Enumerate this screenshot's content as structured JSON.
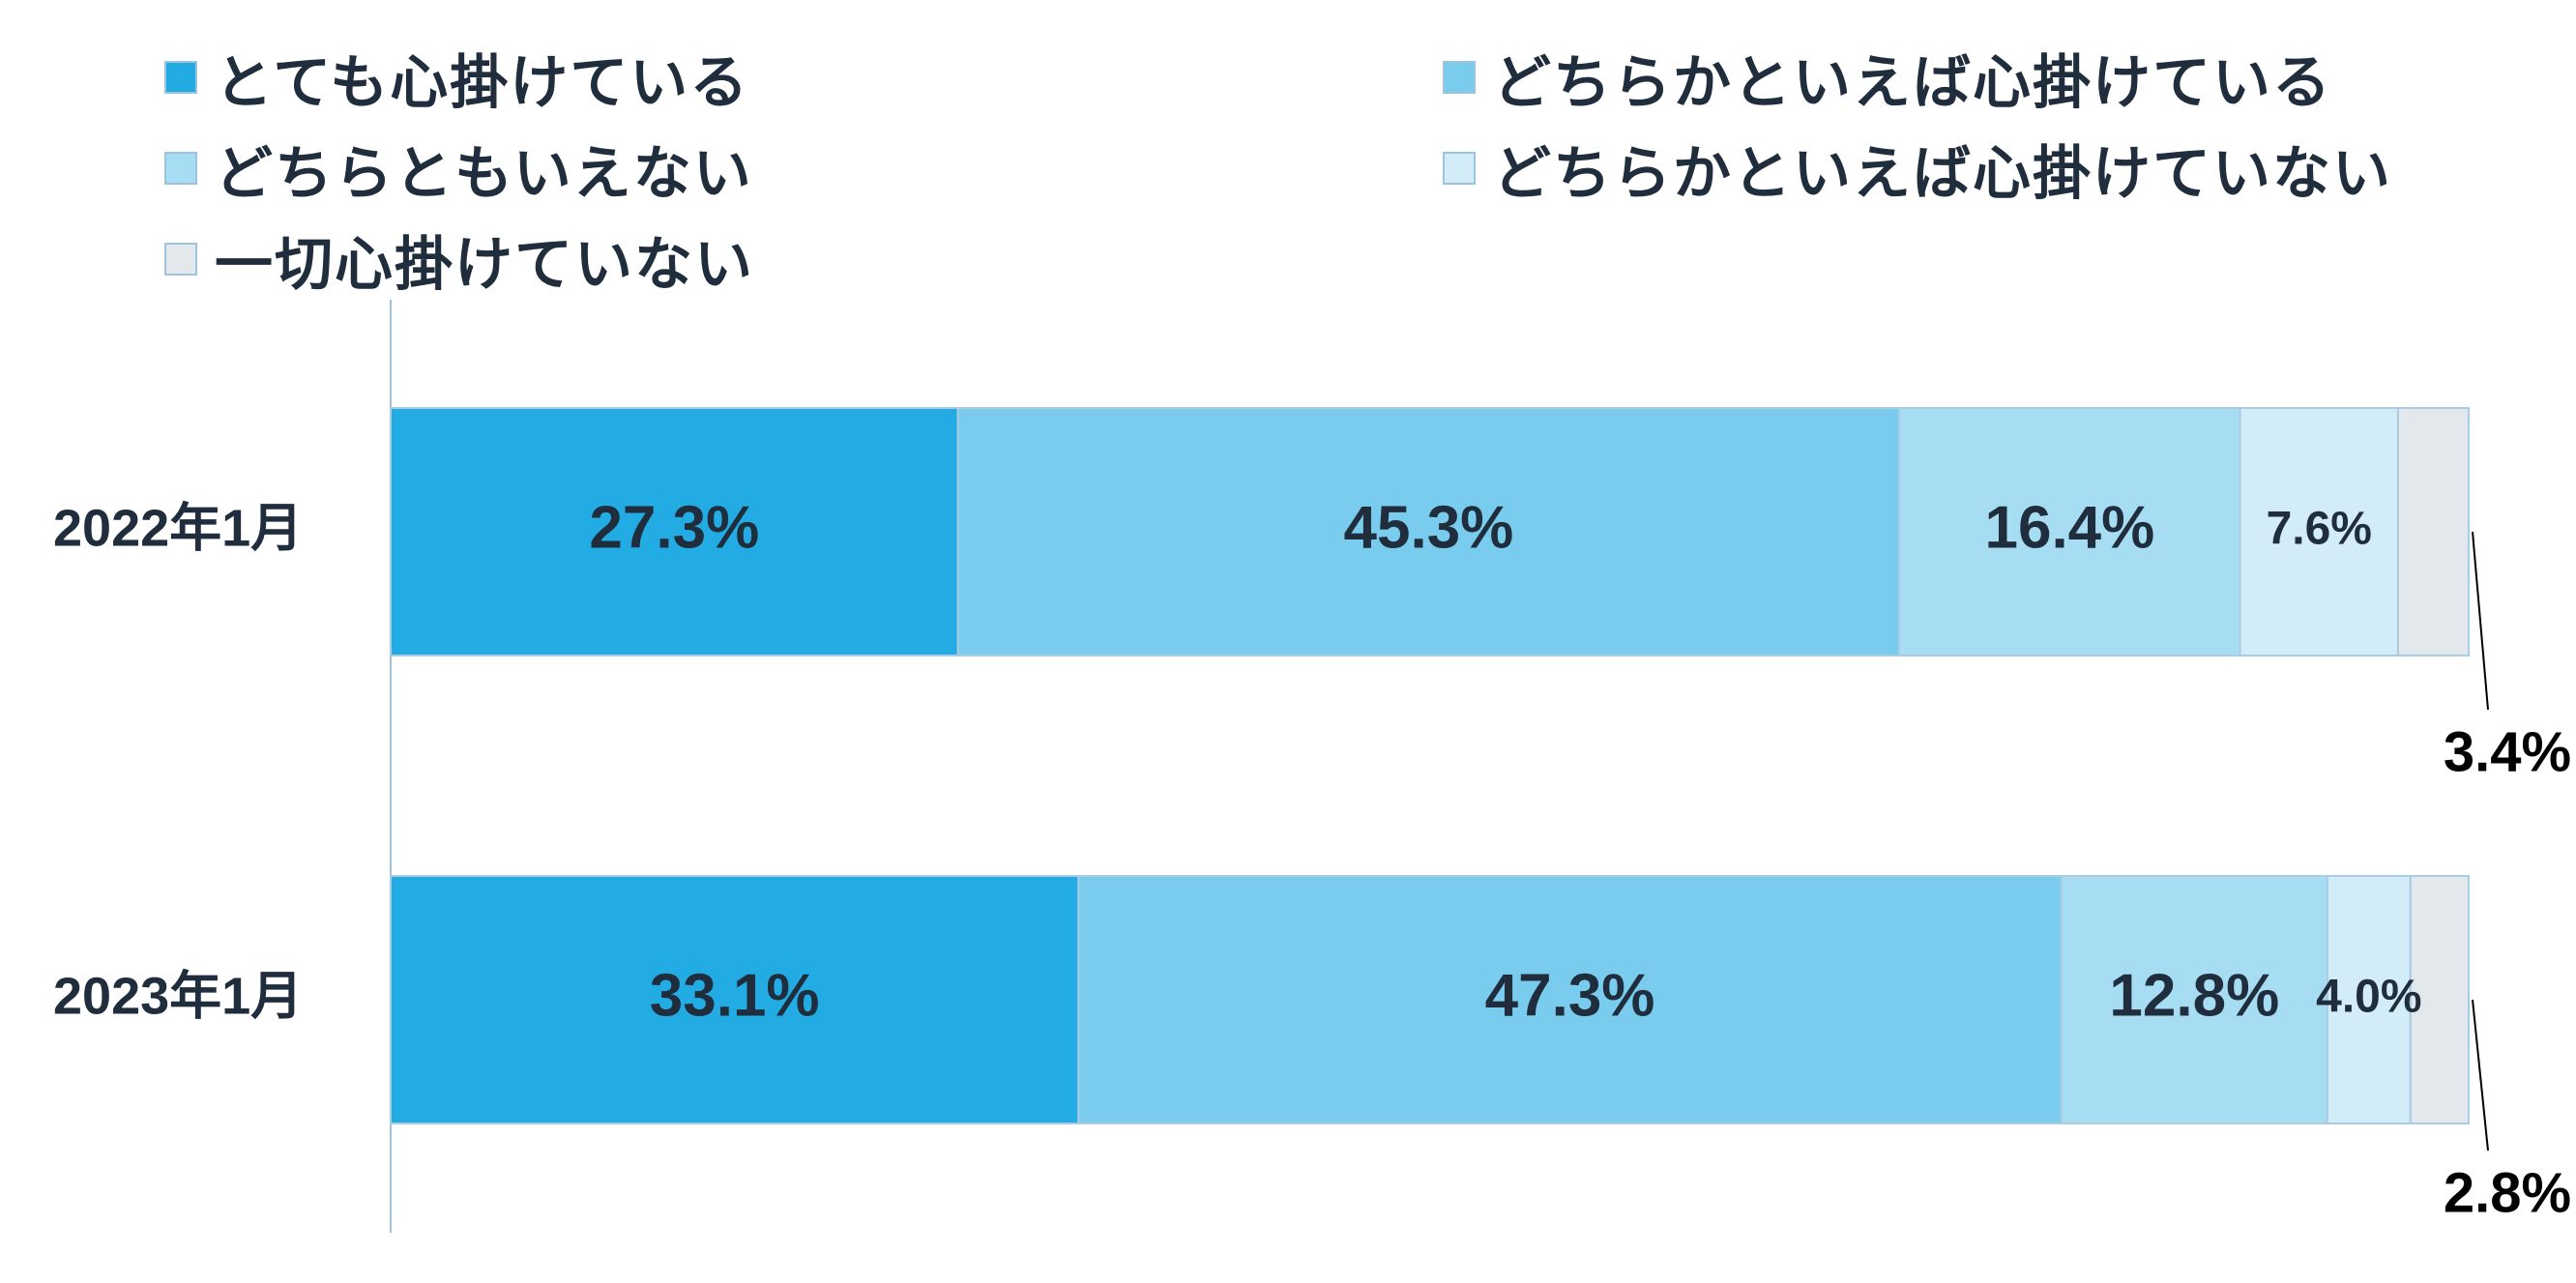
{
  "chart_data": {
    "type": "bar",
    "orientation": "horizontal",
    "stacked": true,
    "unit": "%",
    "categories": [
      "2022年1月",
      "2023年1月"
    ],
    "series": [
      {
        "name": "とても心掛けている",
        "values": [
          27.3,
          33.1
        ],
        "labels": [
          "27.3%",
          "33.1%"
        ],
        "color": "#22ace3"
      },
      {
        "name": "どちらかといえば心掛けている",
        "values": [
          45.3,
          47.3
        ],
        "labels": [
          "45.3%",
          "47.3%"
        ],
        "color": "#79ccee"
      },
      {
        "name": "どちらともいえない",
        "values": [
          16.4,
          12.8
        ],
        "labels": [
          "16.4%",
          "12.8%"
        ],
        "color": "#a7ddf3"
      },
      {
        "name": "どちらかといえば心掛けていない",
        "values": [
          7.6,
          4.0
        ],
        "labels": [
          "7.6%",
          "4.0%"
        ],
        "color": "#d3edf8"
      },
      {
        "name": "一切心掛けていない",
        "values": [
          3.4,
          2.8
        ],
        "labels": [
          "3.4%",
          "2.8%"
        ],
        "color": "#e2e8ec"
      }
    ],
    "xlim": [
      0,
      100
    ],
    "grid": false,
    "legend_position": "top",
    "title": "",
    "xlabel": "",
    "ylabel": ""
  },
  "colors": {
    "label_dark": "#1f2d3d",
    "callout": "#000000",
    "bar_border": "#a9cbe3",
    "axis": "#9dc3dd"
  }
}
